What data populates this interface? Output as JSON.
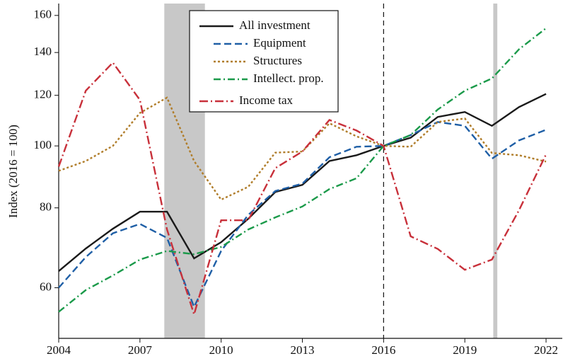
{
  "chart_data": {
    "type": "line",
    "y_label": "Index (2016 = 100)",
    "x": [
      2004,
      2005,
      2006,
      2007,
      2008,
      2009,
      2010,
      2011,
      2012,
      2013,
      2014,
      2015,
      2016,
      2017,
      2018,
      2019,
      2020,
      2021,
      2022
    ],
    "series": [
      {
        "name": "All investment",
        "color": "#1a1a1a",
        "dash": "none",
        "values": [
          63.7,
          69.1,
          74.2,
          78.9,
          78.9,
          66.7,
          70.7,
          76.9,
          84.7,
          86.9,
          94.7,
          96.7,
          100,
          103,
          111,
          113,
          107.5,
          115,
          120.6
        ]
      },
      {
        "name": "Equipment",
        "color": "#1f5fa6",
        "dash": "10,5",
        "values": [
          60,
          67,
          73,
          75.5,
          71.8,
          56,
          68.5,
          78,
          85,
          87.3,
          96,
          99.7,
          100,
          104,
          109,
          107.5,
          95.5,
          102,
          106
        ]
      },
      {
        "name": "Structures",
        "color": "#b07d2a",
        "dash": "3,3",
        "values": [
          91.4,
          94.7,
          100,
          112.6,
          119,
          94.7,
          82.4,
          86.3,
          97.6,
          98,
          108.5,
          103.5,
          100,
          99.7,
          109,
          110.4,
          97.5,
          96.7,
          94.5
        ]
      },
      {
        "name": "Intellect. prop.",
        "color": "#1b9a4a",
        "dash": "10,4,2,4",
        "values": [
          55,
          59.5,
          62.7,
          66.4,
          68.5,
          67.7,
          69.5,
          74,
          77.3,
          80.4,
          85.6,
          89,
          100,
          104,
          114,
          122,
          127.5,
          141.6,
          152.8
        ]
      },
      {
        "name": "Income tax",
        "color": "#c8303a",
        "dash": "12,4,2,4",
        "values": [
          92.8,
          122,
          135,
          118,
          74,
          54.5,
          76.5,
          76.5,
          92.3,
          98,
          109.8,
          105.7,
          100,
          72.2,
          69,
          64,
          66.4,
          79.3,
          97
        ]
      }
    ],
    "xlim": [
      2004,
      2022.6
    ],
    "xticks": [
      2004,
      2007,
      2010,
      2013,
      2016,
      2019,
      2022
    ],
    "ylim": [
      50,
      167
    ],
    "yticks": [
      60,
      80,
      100,
      120,
      140,
      160
    ],
    "yscale": "log",
    "recessions": [
      [
        2007.9,
        2009.4
      ],
      [
        2020.05,
        2020.2
      ]
    ],
    "reference_line": 2016,
    "legend": "upper center"
  }
}
